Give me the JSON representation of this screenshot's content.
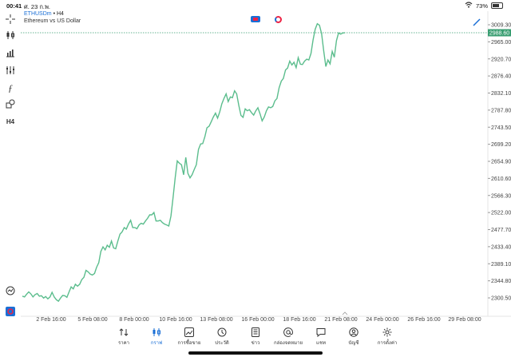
{
  "status": {
    "time": "00:41",
    "date": "ศ. 23 ก.พ.",
    "battery": "73%",
    "battery_level": 0.73
  },
  "header": {
    "symbol": "ETHUSDm",
    "sep": "•",
    "timeframe": "H4",
    "description": "Ethereum vs US Dollar"
  },
  "toolbar": {
    "items": [
      {
        "name": "crosshair-icon"
      },
      {
        "name": "candlestick-icon"
      },
      {
        "name": "bar-chart-icon"
      },
      {
        "name": "indicators-icon"
      },
      {
        "name": "function-icon"
      },
      {
        "name": "objects-icon"
      }
    ],
    "timeframe_label": "H4"
  },
  "colors": {
    "line": "#5bbd8d",
    "current_price_bg": "#3a9e72",
    "accent": "#1a6fd6"
  },
  "chart_data": {
    "type": "line",
    "title": "",
    "current_price": "2988.60",
    "current_value": 2988.6,
    "ylim": [
      2280,
      3030
    ],
    "y_ticks": [
      "3009.30",
      "2965.00",
      "2920.70",
      "2876.40",
      "2832.10",
      "2787.80",
      "2743.50",
      "2699.20",
      "2654.90",
      "2610.60",
      "2566.30",
      "2522.00",
      "2477.70",
      "2433.40",
      "2389.10",
      "2344.80",
      "2300.50"
    ],
    "y_tick_values": [
      3009.3,
      2965.0,
      2920.7,
      2876.4,
      2832.1,
      2787.8,
      2743.5,
      2699.2,
      2654.9,
      2610.6,
      2566.3,
      2522.0,
      2477.7,
      2433.4,
      2389.1,
      2344.8,
      2300.5
    ],
    "x_ticks": [
      "2 Feb 16:00",
      "5 Feb 08:00",
      "8 Feb 00:00",
      "10 Feb 16:00",
      "13 Feb 08:00",
      "16 Feb 00:00",
      "18 Feb 16:00",
      "21 Feb 08:00",
      "24 Feb 00:00",
      "26 Feb 16:00",
      "29 Feb 08:00"
    ],
    "values": [
      2305,
      2303,
      2310,
      2316,
      2311,
      2303,
      2309,
      2312,
      2305,
      2306,
      2300,
      2304,
      2298,
      2303,
      2315,
      2303,
      2296,
      2292,
      2300,
      2307,
      2306,
      2302,
      2316,
      2329,
      2324,
      2336,
      2331,
      2336,
      2348,
      2354,
      2372,
      2368,
      2362,
      2360,
      2364,
      2380,
      2392,
      2421,
      2433,
      2425,
      2437,
      2432,
      2448,
      2430,
      2428,
      2448,
      2466,
      2472,
      2483,
      2479,
      2492,
      2502,
      2483,
      2483,
      2480,
      2490,
      2494,
      2492,
      2500,
      2507,
      2516,
      2516,
      2522,
      2500,
      2500,
      2502,
      2496,
      2492,
      2490,
      2487,
      2513,
      2560,
      2612,
      2656,
      2650,
      2646,
      2620,
      2665,
      2624,
      2612,
      2620,
      2634,
      2646,
      2686,
      2700,
      2701,
      2719,
      2742,
      2746,
      2758,
      2770,
      2780,
      2767,
      2783,
      2804,
      2818,
      2830,
      2810,
      2822,
      2820,
      2838,
      2830,
      2800,
      2774,
      2769,
      2791,
      2786,
      2789,
      2781,
      2775,
      2786,
      2794,
      2778,
      2760,
      2770,
      2786,
      2796,
      2794,
      2797,
      2812,
      2818,
      2846,
      2863,
      2870,
      2892,
      2897,
      2915,
      2905,
      2912,
      2898,
      2924,
      2907,
      2906,
      2915,
      2920,
      2918,
      2935,
      2970,
      2998,
      3012,
      3008,
      2986,
      2942,
      2901,
      2918,
      2908,
      2940,
      2925,
      2968,
      2988,
      2985,
      2988,
      2988.6
    ]
  },
  "bottom_nav": {
    "items": [
      {
        "label": "ราคา",
        "icon": "quotes-icon"
      },
      {
        "label": "กราฟ",
        "icon": "chart-icon"
      },
      {
        "label": "การซื้อขาย",
        "icon": "trade-icon"
      },
      {
        "label": "ประวัติ",
        "icon": "history-icon"
      },
      {
        "label": "ข่าว",
        "icon": "news-icon"
      },
      {
        "label": "กล่องจดหมาย",
        "icon": "mailbox-icon"
      },
      {
        "label": "แชท",
        "icon": "chat-icon"
      },
      {
        "label": "บัญชี",
        "icon": "account-icon"
      },
      {
        "label": "การตั้งค่า",
        "icon": "settings-icon"
      }
    ],
    "active": 1
  }
}
